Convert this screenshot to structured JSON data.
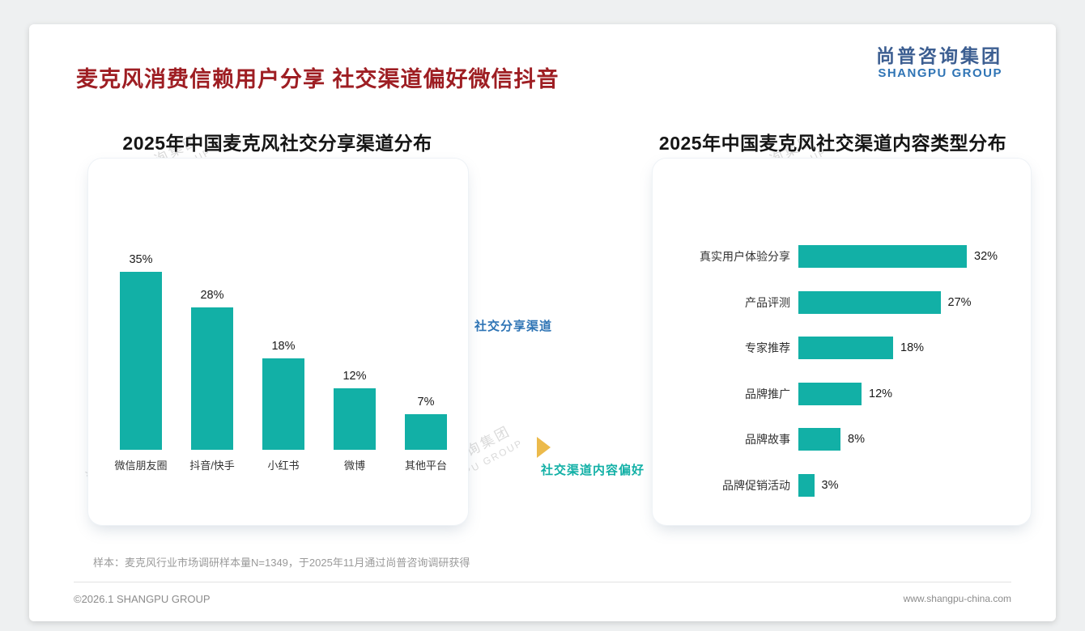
{
  "slide": {
    "title": "麦克风消费信赖用户分享 社交渠道偏好微信抖音",
    "logo": {
      "cn": "尚普咨询集团",
      "en": "SHANGPU GROUP"
    },
    "watermark": {
      "cn": "尚普咨询集团",
      "en": "SHANGPU GROUP"
    },
    "sample_note": "样本：麦克风行业市场调研样本量N=1349，于2025年11月通过尚普咨询调研获得",
    "footer_left": "©2026.1 SHANGPU GROUP",
    "footer_right": "www.shangpu-china.com"
  },
  "annotations": {
    "left_label": "社交分享渠道",
    "right_label": "社交渠道内容偏好"
  },
  "colors": {
    "bar_teal": "#12b0a6",
    "title_red": "#9e1e23",
    "annotation_blue": "#2e74b5",
    "annotation_teal": "#12b0a6",
    "arrow_yellow": "#ecba4b",
    "logo_blue": "#3c5e91",
    "logo_light_blue": "#2f74b5"
  },
  "chart_data": [
    {
      "type": "bar",
      "orientation": "vertical",
      "title": "2025年中国麦克风社交分享渠道分布",
      "categories": [
        "微信朋友圈",
        "抖音/快手",
        "小红书",
        "微博",
        "其他平台"
      ],
      "values": [
        35,
        28,
        18,
        12,
        7
      ],
      "data_labels": [
        "35%",
        "28%",
        "18%",
        "12%",
        "7%"
      ],
      "unit": "%",
      "ylim": [
        0,
        40
      ],
      "grid": false,
      "legend": false
    },
    {
      "type": "bar",
      "orientation": "horizontal",
      "title": "2025年中国麦克风社交渠道内容类型分布",
      "categories": [
        "真实用户体验分享",
        "产品评测",
        "专家推荐",
        "品牌推广",
        "品牌故事",
        "品牌促销活动"
      ],
      "values": [
        32,
        27,
        18,
        12,
        8,
        3
      ],
      "data_labels": [
        "32%",
        "27%",
        "18%",
        "12%",
        "8%",
        "3%"
      ],
      "unit": "%",
      "xlim": [
        0,
        35
      ],
      "grid": false,
      "legend": false
    }
  ]
}
